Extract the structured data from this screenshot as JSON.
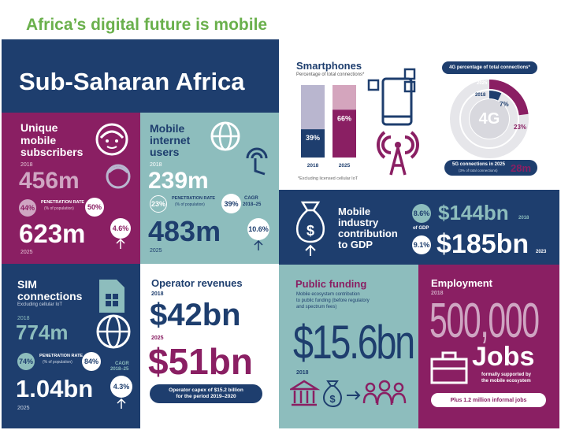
{
  "headline": "Africa’s digital future is mobile",
  "region": "Sub-Saharan Africa",
  "subscribers": {
    "title_l1": "Unique",
    "title_l2": "mobile",
    "title_l3": "subscribers",
    "year1": "2018",
    "value1": "456m",
    "pen1": "44%",
    "pen_label": "PENETRATION RATE",
    "pen_sub": "(% of population)",
    "pen2": "50%",
    "value2": "623m",
    "year2": "2025",
    "cagr": "4.6%",
    "cagr_label": "CAGR",
    "cagr_years": "2018–25"
  },
  "internet": {
    "title_l1": "Mobile",
    "title_l2": "internet",
    "title_l3": "users",
    "year1": "2018",
    "value1": "239m",
    "pen1": "23%",
    "pen_label": "PENETRATION RATE",
    "pen_sub": "(% of population)",
    "pen2": "39%",
    "value2": "483m",
    "year2": "2025",
    "cagr": "10.6%",
    "cagr_label": "CAGR",
    "cagr_years": "2018–25"
  },
  "smartphones": {
    "title": "Smartphones",
    "subtitle": "Percentage of total connections*",
    "note": "*Excluding licensed cellular IoT",
    "chart_data": {
      "type": "bar",
      "categories": [
        "2018",
        "2025"
      ],
      "values": [
        39,
        66
      ],
      "value_labels": [
        "39%",
        "66%"
      ],
      "ylim": [
        0,
        100
      ]
    }
  },
  "fourg": {
    "title": "4G percentage of total connections*",
    "year2025": "2025",
    "year2018": "2018",
    "center": "4G",
    "pct2018": "7%",
    "pct2025": "23%",
    "chart_data": {
      "type": "pie",
      "categories": [
        "2018",
        "2025"
      ],
      "values": [
        7,
        23
      ]
    },
    "fiveg_label": "5G connections in 2025",
    "fiveg_sub": "(3% of total connections)",
    "fiveg_value": "28m"
  },
  "gdp": {
    "title_l1": "Mobile",
    "title_l2": "industry",
    "title_l3": "contribution",
    "title_l4": "to GDP",
    "pct1": "8.6%",
    "of_gdp": "of GDP",
    "pct2": "9.1%",
    "value1": "$144bn",
    "year1": "2018",
    "value2": "$185bn",
    "year2": "2023"
  },
  "sim": {
    "title_l1": "SIM",
    "title_l2": "connections",
    "subtitle": "Excluding cellular IoT",
    "year1": "2018",
    "value1": "774m",
    "pen1": "74%",
    "pen_label": "PENETRATION RATE",
    "pen_sub": "(% of population)",
    "pen2": "84%",
    "value2": "1.04bn",
    "year2": "2025",
    "cagr": "4.3%",
    "cagr_label": "CAGR",
    "cagr_years": "2018–25"
  },
  "revenue": {
    "title": "Operator revenues",
    "year1": "2018",
    "value1": "$42bn",
    "year2": "2025",
    "value2": "$51bn",
    "capex_l1": "Operator capex of $15.2 billion",
    "capex_l2": "for the period 2019–2020"
  },
  "funding": {
    "title": "Public funding",
    "desc_l1": "Mobile ecosystem contribution",
    "desc_l2": "to public funding (before regulatory",
    "desc_l3": "and spectrum fees)",
    "value": "$15.6bn",
    "year": "2018"
  },
  "employment": {
    "title": "Employment",
    "year": "2018",
    "value": "500,000",
    "jobs": "Jobs",
    "sub_l1": "formally supported by",
    "sub_l2": "the mobile ecosystem",
    "informal": "Plus 1.2 million informal jobs"
  },
  "colors": {
    "navy": "#1e3e6e",
    "magenta": "#8a1f63",
    "teal": "#8dbdbd",
    "headline_green": "#6ab04c",
    "bar_light": "#b9b6cf",
    "bar_pink": "#d4a5bd"
  }
}
